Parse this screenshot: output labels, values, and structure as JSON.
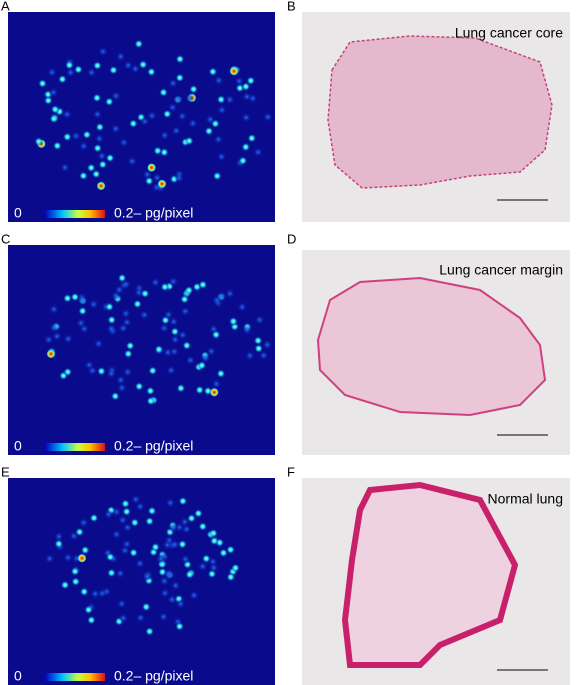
{
  "panels": [
    {
      "label": "A",
      "scale_min": "0",
      "scale_max": "0.2– pg/pixel"
    },
    {
      "label": "B",
      "caption": "Lung cancer core"
    },
    {
      "label": "C",
      "scale_min": "0",
      "scale_max": "0.2– pg/pixel"
    },
    {
      "label": "D",
      "caption": "Lung cancer margin"
    },
    {
      "label": "E",
      "scale_min": "0",
      "scale_max": "0.2– pg/pixel"
    },
    {
      "label": "F",
      "caption": "Normal lung"
    }
  ]
}
